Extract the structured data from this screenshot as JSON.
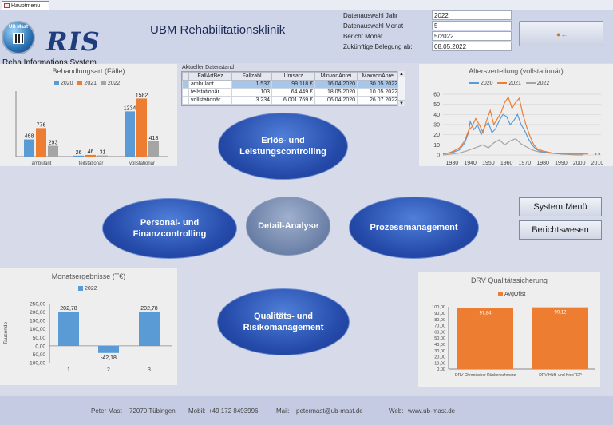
{
  "tab": {
    "label": "Hauptmenu"
  },
  "logo": {
    "text": "UB Mast"
  },
  "brand": {
    "ris": "RIS",
    "subtitle": "Reha Informations System"
  },
  "app_title": "UBM Rehabilitationsklinik",
  "params": [
    {
      "label": "Datenauswahl Jahr",
      "value": "2022"
    },
    {
      "label": "Datenauswahl  Monat",
      "value": "5"
    },
    {
      "label": "Bericht Monat",
      "value": "5/2022"
    },
    {
      "label": "Zukünftige Belegung ab:",
      "value": "08.05.2022"
    }
  ],
  "datastand": {
    "label": "Aktueller Datenstand",
    "columns": [
      "FallArtBez",
      "Fallzahl",
      "Umsatz",
      "MinvonAnrei",
      "MaxvonAnrei"
    ],
    "rows": [
      [
        "ambulant",
        "1.537",
        "99.118 €",
        "16.04.2020",
        "30.05.2022"
      ],
      [
        "teilstationär",
        "103",
        "64.449 €",
        "18.05.2020",
        "10.05.2022"
      ],
      [
        "vollstationär",
        "3.234",
        "6.001.769 €",
        "06.04.2020",
        "26.07.2022"
      ]
    ]
  },
  "menu": {
    "erloes": "Erlös- und Leistungscontrolling",
    "personal": "Personal- und Finanzcontrolling",
    "detail": "Detail-Analyse",
    "prozess": "Prozessmanagement",
    "qualitaet": "Qualitäts- und Risikomanagement",
    "system_menu": "System Menü",
    "berichtswesen": "Berichtswesen"
  },
  "colors": {
    "y2020": "#5b9bd5",
    "y2021": "#ed7d31",
    "y2022": "#a5a5a5",
    "drv": "#ed7d31"
  },
  "footer": {
    "name": "Peter Mast",
    "city": "72070 Tübingen",
    "mobil_label": "Mobil:",
    "mobil": "+49 172 8493996",
    "mail_label": "Mail:",
    "mail": "petermast@ub-mast.de",
    "web_label": "Web:",
    "web": "www.ub-mast.de"
  },
  "chart_data": [
    {
      "type": "bar",
      "title": "Behandlungsart (Fälle)",
      "categories": [
        "ambulant",
        "teilstationär",
        "vollstationär"
      ],
      "series": [
        {
          "name": "2020",
          "values": [
            468,
            26,
            1234
          ]
        },
        {
          "name": "2021",
          "values": [
            776,
            46,
            1582
          ]
        },
        {
          "name": "2022",
          "values": [
            293,
            31,
            418
          ]
        }
      ],
      "legend": "top"
    },
    {
      "type": "line",
      "title": "Altersverteilung (vollstationär)",
      "xlim": [
        1925,
        2012
      ],
      "ylim": [
        0,
        60
      ],
      "yticks": [
        0,
        10,
        20,
        30,
        40,
        50,
        60
      ],
      "xticks": [
        1930,
        1940,
        1950,
        1960,
        1970,
        1980,
        1990,
        2000,
        2010
      ],
      "grid": true,
      "legend": "top",
      "series": [
        {
          "name": "2020",
          "points": [
            [
              1925,
              1
            ],
            [
              1928,
              2
            ],
            [
              1931,
              3
            ],
            [
              1934,
              5
            ],
            [
              1937,
              12
            ],
            [
              1939,
              22
            ],
            [
              1940,
              33
            ],
            [
              1942,
              25
            ],
            [
              1944,
              30
            ],
            [
              1946,
              20
            ],
            [
              1948,
              28
            ],
            [
              1950,
              32
            ],
            [
              1952,
              22
            ],
            [
              1954,
              26
            ],
            [
              1956,
              34
            ],
            [
              1958,
              40
            ],
            [
              1960,
              38
            ],
            [
              1962,
              30
            ],
            [
              1964,
              34
            ],
            [
              1966,
              40
            ],
            [
              1968,
              30
            ],
            [
              1970,
              24
            ],
            [
              1972,
              16
            ],
            [
              1974,
              10
            ],
            [
              1976,
              6
            ],
            [
              1978,
              4
            ],
            [
              1980,
              3
            ],
            [
              1984,
              2
            ],
            [
              1990,
              1
            ],
            [
              1996,
              1
            ],
            [
              2003,
              1
            ]
          ]
        },
        {
          "name": "2021",
          "points": [
            [
              1925,
              1
            ],
            [
              1928,
              2
            ],
            [
              1931,
              4
            ],
            [
              1934,
              7
            ],
            [
              1937,
              14
            ],
            [
              1939,
              24
            ],
            [
              1941,
              28
            ],
            [
              1943,
              36
            ],
            [
              1945,
              30
            ],
            [
              1947,
              22
            ],
            [
              1949,
              34
            ],
            [
              1951,
              44
            ],
            [
              1953,
              30
            ],
            [
              1955,
              36
            ],
            [
              1957,
              42
            ],
            [
              1959,
              52
            ],
            [
              1961,
              57
            ],
            [
              1963,
              46
            ],
            [
              1965,
              52
            ],
            [
              1967,
              56
            ],
            [
              1969,
              40
            ],
            [
              1971,
              28
            ],
            [
              1973,
              18
            ],
            [
              1975,
              10
            ],
            [
              1977,
              6
            ],
            [
              1980,
              4
            ],
            [
              1985,
              2
            ],
            [
              1992,
              1
            ],
            [
              2000,
              1
            ],
            [
              2005,
              1
            ]
          ]
        },
        {
          "name": "2022",
          "points": [
            [
              1925,
              0
            ],
            [
              1930,
              1
            ],
            [
              1934,
              2
            ],
            [
              1938,
              4
            ],
            [
              1941,
              6
            ],
            [
              1944,
              8
            ],
            [
              1947,
              10
            ],
            [
              1950,
              7
            ],
            [
              1953,
              12
            ],
            [
              1956,
              15
            ],
            [
              1959,
              10
            ],
            [
              1962,
              14
            ],
            [
              1965,
              16
            ],
            [
              1968,
              11
            ],
            [
              1971,
              8
            ],
            [
              1974,
              5
            ],
            [
              1978,
              3
            ],
            [
              1983,
              2
            ],
            [
              1990,
              1
            ],
            [
              1998,
              0
            ],
            [
              2002,
              0
            ]
          ]
        }
      ]
    },
    {
      "type": "bar",
      "title": "Monatsergebnisse (T€)",
      "ylabel": "Tausende",
      "categories": [
        "1",
        "2",
        "3"
      ],
      "series": [
        {
          "name": "2022",
          "values": [
            202.78,
            -42.18,
            202.78
          ]
        }
      ],
      "value_labels": [
        "202,78",
        "-42,18",
        "202,78"
      ],
      "ylim": [
        -100,
        250
      ],
      "yticks": [
        "250,00",
        "200,00",
        "150,00",
        "100,00",
        "50,00",
        "0,00",
        "-50,00",
        "-100,00"
      ],
      "legend": "top"
    },
    {
      "type": "bar",
      "title": "DRV Qualitätssicherung",
      "categories": [
        "DRV Chronischer Rückenschmerz",
        "DRV Hüft- und KnieTEP"
      ],
      "series": [
        {
          "name": "AvgOfist",
          "values": [
            97.84,
            99.12
          ]
        }
      ],
      "value_labels": [
        "97,84",
        "99,12"
      ],
      "ylim": [
        0,
        100
      ],
      "yticks": [
        "100,00",
        "90,00",
        "80,00",
        "70,00",
        "60,00",
        "50,00",
        "40,00",
        "30,00",
        "20,00",
        "10,00",
        "0,00"
      ],
      "legend": "top"
    }
  ]
}
